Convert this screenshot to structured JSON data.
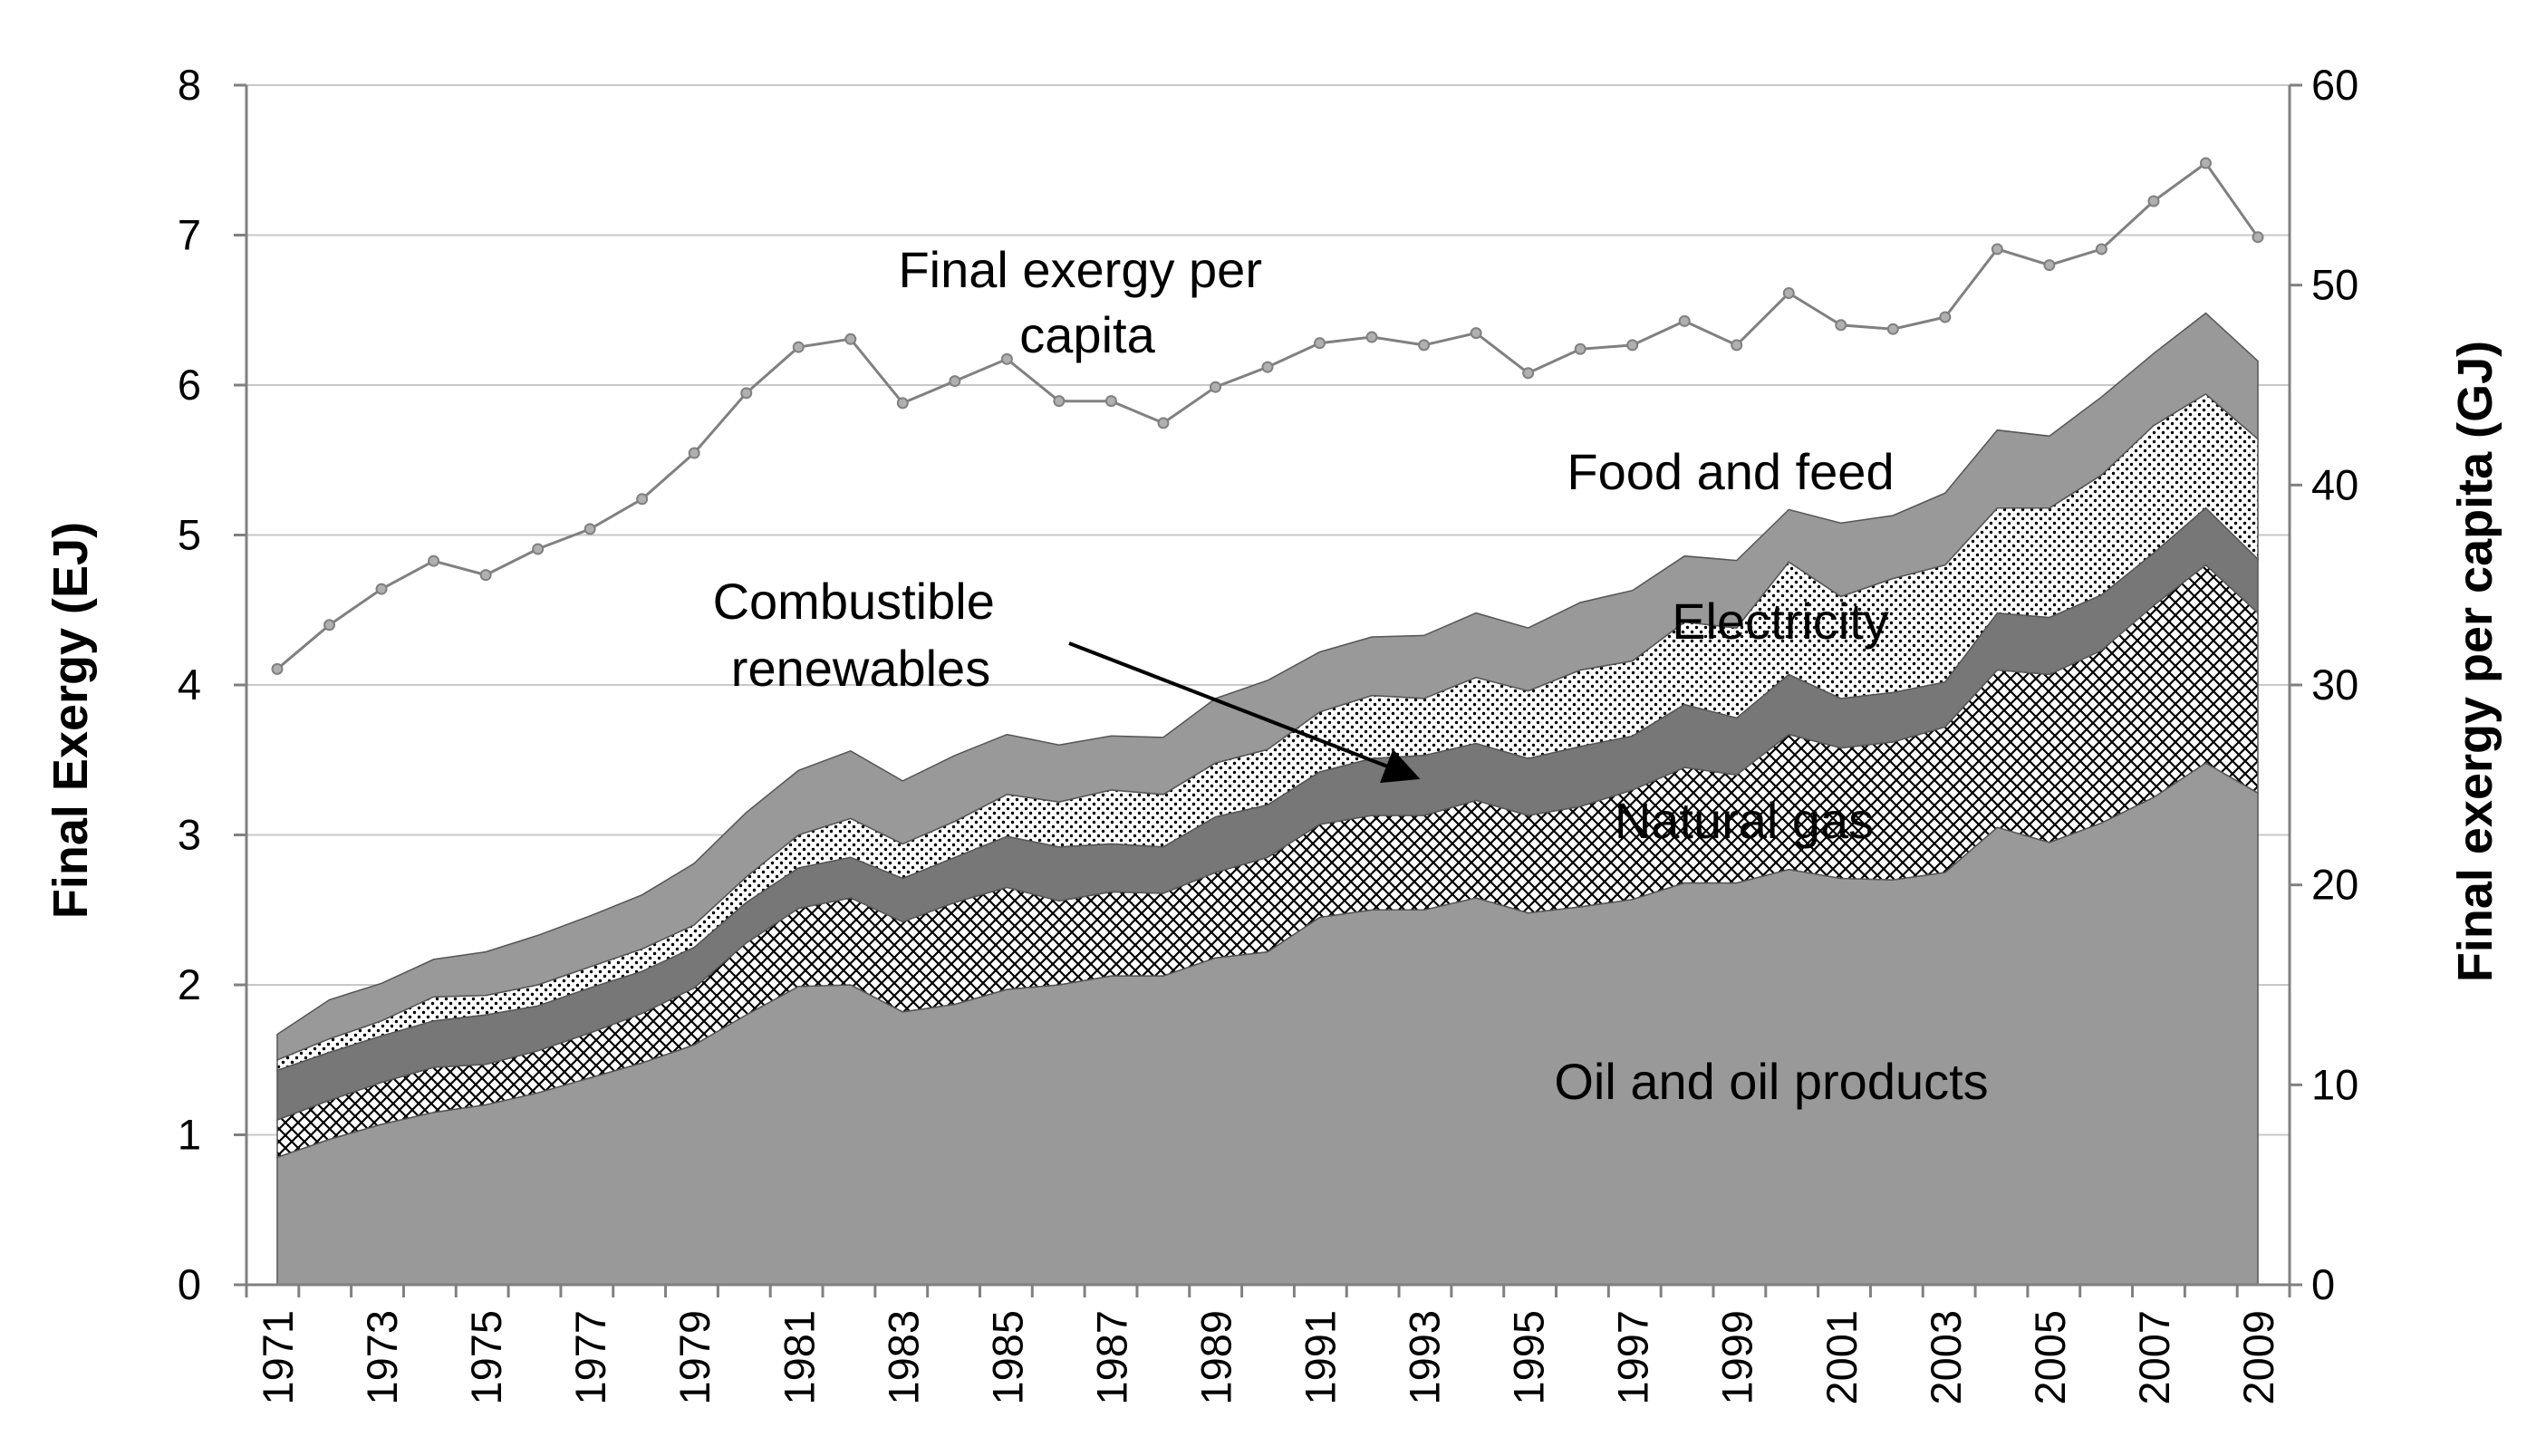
{
  "chart_data": {
    "type": "area",
    "stacked": true,
    "x": [
      1971,
      1972,
      1973,
      1974,
      1975,
      1976,
      1977,
      1978,
      1979,
      1980,
      1981,
      1982,
      1983,
      1984,
      1985,
      1986,
      1987,
      1988,
      1989,
      1990,
      1991,
      1992,
      1993,
      1994,
      1995,
      1996,
      1997,
      1998,
      1999,
      2000,
      2001,
      2002,
      2003,
      2004,
      2005,
      2006,
      2007,
      2008,
      2009
    ],
    "x_tick_labels": [
      "1971",
      "1973",
      "1975",
      "1977",
      "1979",
      "1981",
      "1983",
      "1985",
      "1987",
      "1989",
      "1991",
      "1993",
      "1995",
      "1997",
      "1999",
      "2001",
      "2003",
      "2005",
      "2007",
      "2009"
    ],
    "ylabel": "Final Exergy (EJ)",
    "ylim": [
      0,
      8
    ],
    "y_ticks": [
      "0",
      "1",
      "2",
      "3",
      "4",
      "5",
      "6",
      "7",
      "8"
    ],
    "y2label": "Final exergy per capita (GJ)",
    "y2lim": [
      0,
      60
    ],
    "y2_ticks": [
      "0",
      "10",
      "20",
      "30",
      "40",
      "50",
      "60"
    ],
    "grid": true,
    "series": [
      {
        "name": "Oil and oil products",
        "fill": "#999999",
        "pattern": "solid",
        "values": [
          0.85,
          0.97,
          1.07,
          1.15,
          1.2,
          1.28,
          1.38,
          1.48,
          1.6,
          1.8,
          1.99,
          2.0,
          1.82,
          1.87,
          1.97,
          2.0,
          2.06,
          2.06,
          2.18,
          2.22,
          2.45,
          2.5,
          2.5,
          2.58,
          2.48,
          2.52,
          2.57,
          2.68,
          2.68,
          2.77,
          2.71,
          2.7,
          2.75,
          3.05,
          2.95,
          3.08,
          3.25,
          3.48,
          3.28
        ]
      },
      {
        "name": "Natural gas",
        "fill": "#ffffff",
        "pattern": "crosshatch",
        "values": [
          0.25,
          0.26,
          0.28,
          0.3,
          0.27,
          0.28,
          0.3,
          0.33,
          0.38,
          0.48,
          0.52,
          0.58,
          0.6,
          0.68,
          0.68,
          0.56,
          0.56,
          0.55,
          0.57,
          0.63,
          0.62,
          0.63,
          0.63,
          0.65,
          0.65,
          0.67,
          0.73,
          0.77,
          0.72,
          0.9,
          0.87,
          0.92,
          0.97,
          1.05,
          1.12,
          1.15,
          1.28,
          1.32,
          1.2
        ]
      },
      {
        "name": "Combustible renewables",
        "fill": "#777777",
        "pattern": "solid",
        "values": [
          0.33,
          0.32,
          0.31,
          0.31,
          0.33,
          0.3,
          0.3,
          0.28,
          0.27,
          0.27,
          0.27,
          0.27,
          0.29,
          0.3,
          0.34,
          0.36,
          0.32,
          0.31,
          0.37,
          0.35,
          0.35,
          0.38,
          0.4,
          0.38,
          0.38,
          0.4,
          0.36,
          0.42,
          0.38,
          0.4,
          0.33,
          0.33,
          0.3,
          0.38,
          0.38,
          0.37,
          0.35,
          0.38,
          0.36
        ]
      },
      {
        "name": "Electricity",
        "fill": "#ffffff",
        "pattern": "dots",
        "values": [
          0.07,
          0.09,
          0.1,
          0.16,
          0.13,
          0.14,
          0.14,
          0.15,
          0.15,
          0.17,
          0.22,
          0.26,
          0.23,
          0.24,
          0.28,
          0.3,
          0.36,
          0.35,
          0.36,
          0.37,
          0.4,
          0.42,
          0.38,
          0.44,
          0.45,
          0.51,
          0.5,
          0.55,
          0.6,
          0.75,
          0.68,
          0.76,
          0.78,
          0.7,
          0.73,
          0.8,
          0.85,
          0.76,
          0.8
        ]
      },
      {
        "name": "Food and feed",
        "fill": "#999999",
        "pattern": "solid",
        "values": [
          0.17,
          0.26,
          0.25,
          0.25,
          0.29,
          0.33,
          0.34,
          0.36,
          0.41,
          0.43,
          0.43,
          0.45,
          0.42,
          0.44,
          0.4,
          0.38,
          0.36,
          0.38,
          0.43,
          0.46,
          0.4,
          0.39,
          0.42,
          0.43,
          0.42,
          0.45,
          0.47,
          0.44,
          0.45,
          0.35,
          0.49,
          0.42,
          0.48,
          0.52,
          0.48,
          0.52,
          0.48,
          0.54,
          0.52
        ]
      }
    ],
    "line_series": {
      "name": "Final exergy per capita",
      "axis": "right",
      "color": "#808080",
      "values": [
        30.8,
        33.0,
        34.8,
        36.2,
        35.5,
        36.8,
        37.8,
        39.3,
        41.6,
        44.6,
        46.9,
        47.3,
        44.1,
        45.2,
        46.3,
        44.2,
        44.2,
        43.1,
        44.9,
        45.9,
        47.1,
        47.4,
        47.0,
        47.6,
        45.6,
        46.8,
        47.0,
        48.2,
        47.0,
        49.6,
        48.0,
        47.8,
        48.4,
        51.8,
        51.0,
        51.8,
        54.2,
        56.1,
        52.4
      ]
    },
    "annotations": [
      {
        "text_lines": [
          "Final exergy per",
          "capita"
        ],
        "series": "Final exergy per capita"
      },
      {
        "text_lines": [
          "Food and feed"
        ],
        "series": "Food and feed"
      },
      {
        "text_lines": [
          "Combustible",
          "renewables"
        ],
        "series": "Combustible renewables",
        "arrow": true
      },
      {
        "text_lines": [
          "Electricity"
        ],
        "series": "Electricity"
      },
      {
        "text_lines": [
          "Natural gas"
        ],
        "series": "Natural gas"
      },
      {
        "text_lines": [
          "Oil and oil products"
        ],
        "series": "Oil and oil products"
      }
    ]
  }
}
